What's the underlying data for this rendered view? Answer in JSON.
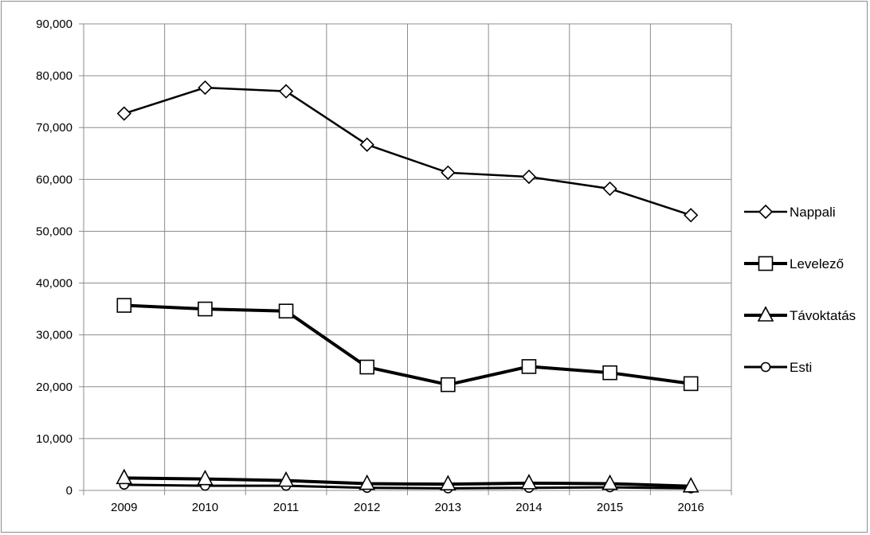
{
  "chart_data": {
    "type": "line",
    "title": "",
    "xlabel": "",
    "ylabel": "",
    "categories": [
      "2009",
      "2010",
      "2011",
      "2012",
      "2013",
      "2014",
      "2015",
      "2016"
    ],
    "ylim": [
      0,
      90000
    ],
    "y_ticks": [
      0,
      10000,
      20000,
      30000,
      40000,
      50000,
      60000,
      70000,
      80000,
      90000
    ],
    "y_tick_labels": [
      "0",
      "10,000",
      "20,000",
      "30,000",
      "40,000",
      "50,000",
      "60,000",
      "70,000",
      "80,000",
      "90,000"
    ],
    "grid": true,
    "legend_position": "right",
    "series": [
      {
        "name": "Nappali",
        "marker": "diamond",
        "values": [
          72700,
          77700,
          77000,
          66700,
          61300,
          60500,
          58200,
          53100
        ]
      },
      {
        "name": "Levelező",
        "marker": "square",
        "values": [
          35700,
          35000,
          34600,
          23800,
          20400,
          23900,
          22700,
          20600
        ]
      },
      {
        "name": "Távoktatás",
        "marker": "triangle",
        "values": [
          2400,
          2200,
          1900,
          1300,
          1200,
          1400,
          1300,
          800
        ]
      },
      {
        "name": "Esti",
        "marker": "circle",
        "values": [
          1100,
          900,
          900,
          500,
          400,
          500,
          600,
          400
        ]
      }
    ]
  }
}
